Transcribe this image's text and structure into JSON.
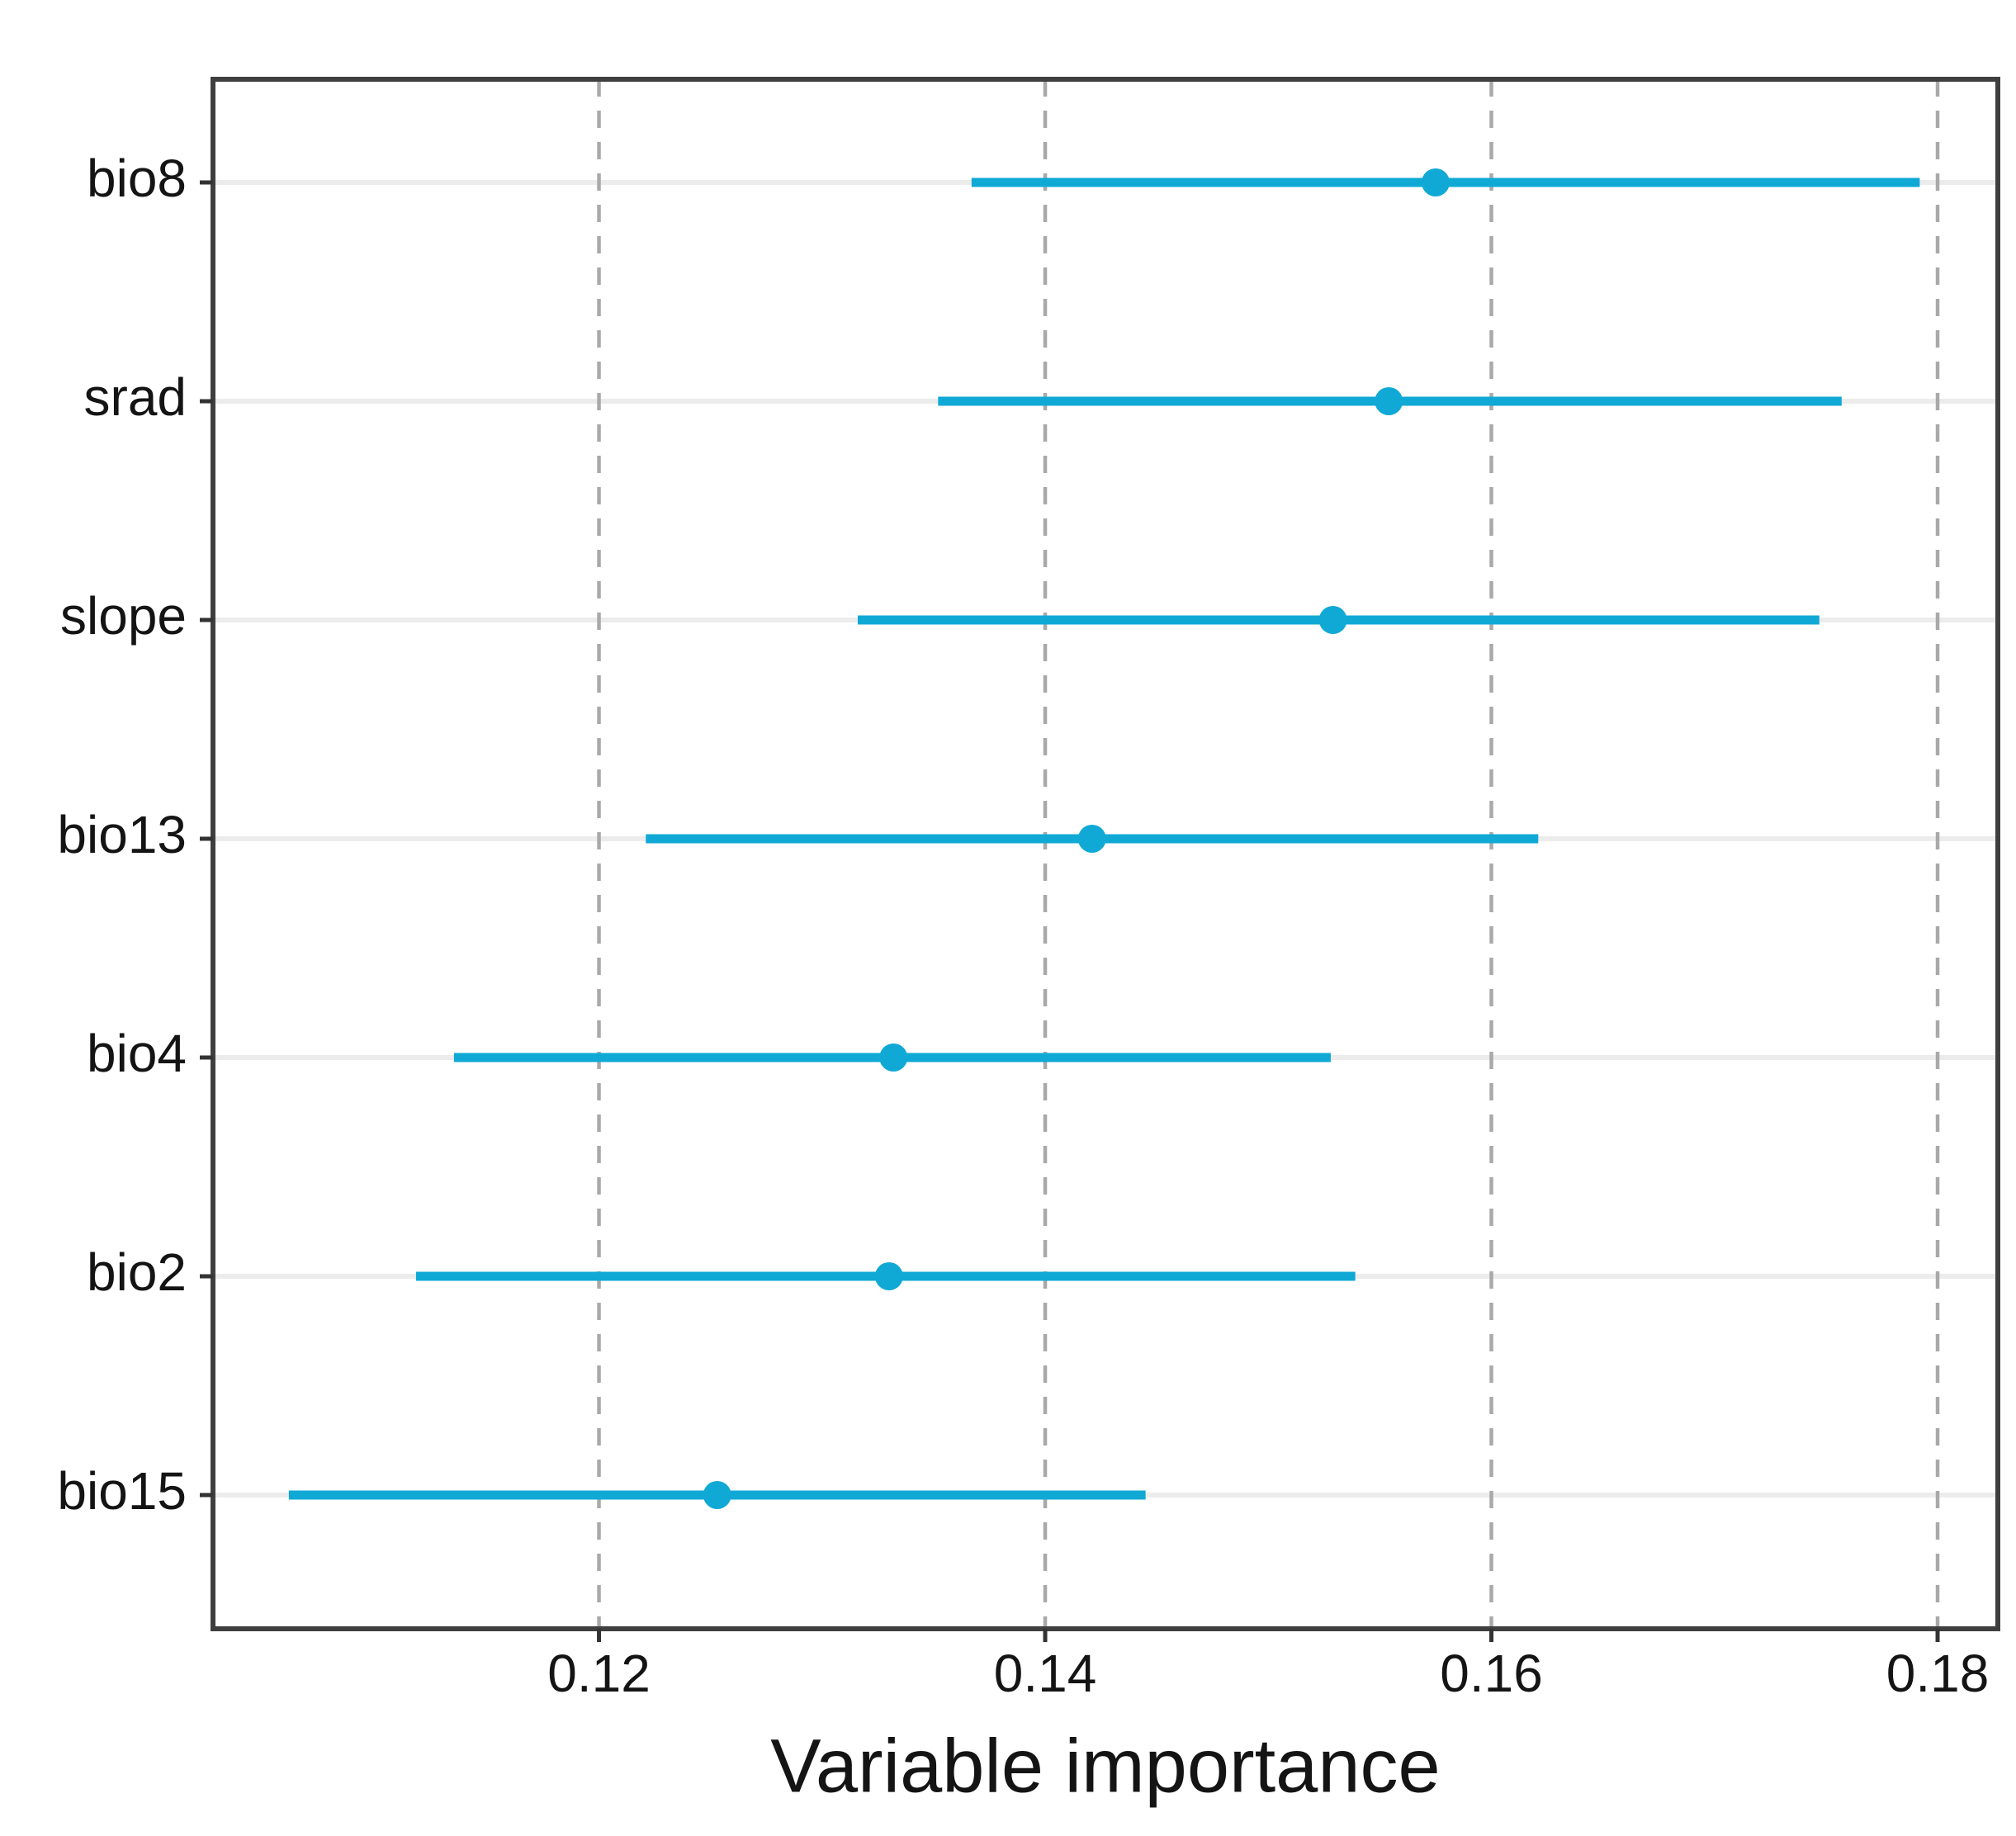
{
  "figure": {
    "background": "#ffffff"
  },
  "chart_data": {
    "type": "scatter",
    "subtype": "horizontal_pointrange",
    "title": "",
    "xlabel": "Variable importance",
    "ylabel": "",
    "categories": [
      "bio8",
      "srad",
      "slope",
      "bio13",
      "bio4",
      "bio2",
      "bio15"
    ],
    "series": [
      {
        "name": "variable_importance",
        "means": [
          0.1575,
          0.1554,
          0.1529,
          0.1421,
          0.1332,
          0.133,
          0.1253
        ],
        "lows": [
          0.1367,
          0.1352,
          0.1316,
          0.1221,
          0.1135,
          0.1118,
          0.1061
        ],
        "highs": [
          0.1792,
          0.1757,
          0.1747,
          0.1621,
          0.1528,
          0.1539,
          0.1445
        ]
      }
    ],
    "xlim": [
      0.1027,
      0.1827
    ],
    "x_tick_values": [
      0.12,
      0.14,
      0.16,
      0.18
    ],
    "x_tick_labels": [
      "0.12",
      "0.14",
      "0.16",
      "0.18"
    ],
    "grid": {
      "vertical_dashed_at_ticks": true,
      "horizontal_major_at_rows": true
    },
    "legend_position": "none",
    "colors": {
      "point_range": "#10A9D6",
      "panel_border": "#3F3F3F",
      "dashed_grid": "#A9A9A9",
      "row_grid": "#ECECEC",
      "tick_mark": "#333333",
      "text": "#141414"
    }
  }
}
